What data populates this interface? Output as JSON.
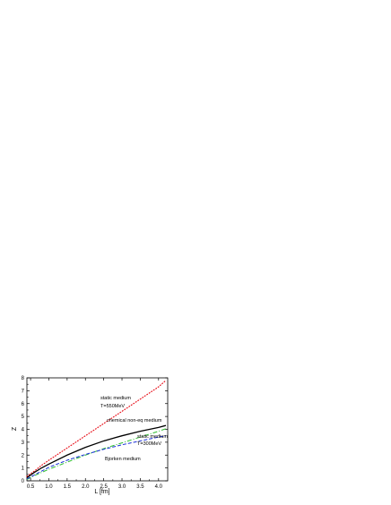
{
  "chart_data": {
    "type": "line",
    "xlabel": "L  [fm]",
    "ylabel": "Z",
    "xlim": [
      0.4,
      4.25
    ],
    "ylim": [
      0,
      8
    ],
    "xticks": [
      "0.5",
      "1.0",
      "1.5",
      "2.0",
      "2.5",
      "3.0",
      "3.5",
      "4.0"
    ],
    "yticks": [
      "0",
      "1",
      "2",
      "3",
      "4",
      "5",
      "6",
      "7",
      "8"
    ],
    "grid": false,
    "series": [
      {
        "key": "static-550",
        "color": "#e8141e",
        "dash": "dotted",
        "x": [
          0.4,
          0.6,
          0.8,
          1.0,
          1.5,
          2.0,
          2.5,
          3.0,
          3.5,
          4.0,
          4.2
        ],
        "y": [
          0.35,
          0.75,
          1.2,
          1.6,
          2.55,
          3.5,
          4.45,
          5.4,
          6.35,
          7.3,
          7.8
        ]
      },
      {
        "key": "chemical",
        "color": "#000000",
        "dash": "solid",
        "x": [
          0.4,
          0.6,
          0.8,
          1.0,
          1.5,
          2.0,
          2.5,
          3.0,
          3.5,
          4.0,
          4.2
        ],
        "y": [
          0.25,
          0.65,
          1.0,
          1.3,
          2.0,
          2.6,
          3.1,
          3.5,
          3.85,
          4.15,
          4.3
        ]
      },
      {
        "key": "static-300",
        "color": "#2fbf2f",
        "dash": "dash-dot",
        "x": [
          0.4,
          0.6,
          0.8,
          1.0,
          1.5,
          2.0,
          2.5,
          3.0,
          3.5,
          4.0,
          4.2
        ],
        "y": [
          0.1,
          0.4,
          0.65,
          0.9,
          1.45,
          2.0,
          2.5,
          2.95,
          3.4,
          3.85,
          4.05
        ]
      },
      {
        "key": "bjorken",
        "color": "#1a2fd8",
        "dash": "dashed",
        "x": [
          0.4,
          0.6,
          0.8,
          1.0,
          1.5,
          2.0,
          2.5,
          3.0,
          3.5,
          4.0,
          4.2
        ],
        "y": [
          0.15,
          0.45,
          0.75,
          1.05,
          1.6,
          2.05,
          2.45,
          2.8,
          3.1,
          3.4,
          3.5
        ]
      }
    ],
    "annotations": {
      "static_550_line1": "static medium",
      "static_550_line2": "T=550MeV",
      "chemical": "chemical non-eq medium",
      "static_300_line1": "static medium",
      "static_300_line2": "T=300MeV",
      "bjorken": "Bjorken medium"
    }
  }
}
